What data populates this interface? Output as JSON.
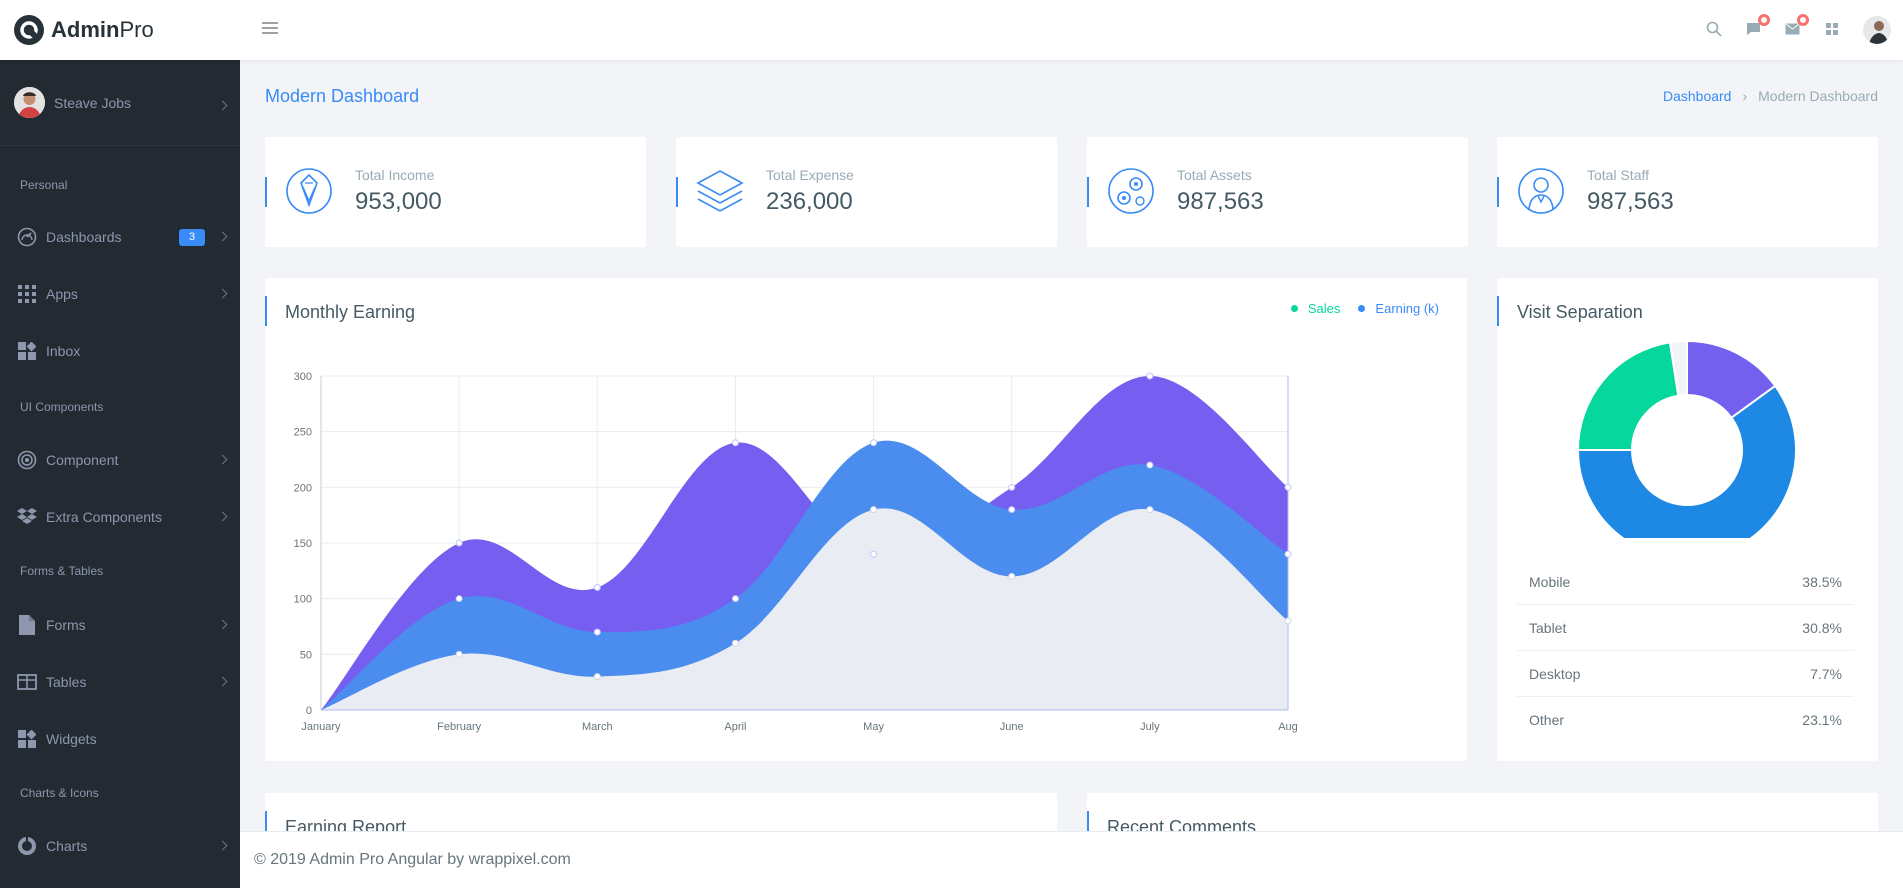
{
  "brand": {
    "bold": "Admin",
    "light": "Pro"
  },
  "user": {
    "name": "Steave Jobs"
  },
  "sidebar": {
    "captions": [
      "Personal",
      "UI Components",
      "Forms & Tables",
      "Charts & Icons"
    ],
    "items": [
      {
        "label": "Dashboards",
        "icon": "gauge-icon",
        "badge": "3"
      },
      {
        "label": "Apps",
        "icon": "grid-icon"
      },
      {
        "label": "Inbox",
        "icon": "widget-icon"
      },
      {
        "label": "Component",
        "icon": "target-icon"
      },
      {
        "label": "Extra Components",
        "icon": "dropbox-icon"
      },
      {
        "label": "Forms",
        "icon": "file-icon"
      },
      {
        "label": "Tables",
        "icon": "table-icon"
      },
      {
        "label": "Widgets",
        "icon": "widget-icon"
      },
      {
        "label": "Charts",
        "icon": "pie-icon"
      }
    ]
  },
  "header": {
    "title": "Modern Dashboard",
    "breadcrumb": [
      "Dashboard",
      "Modern Dashboard"
    ]
  },
  "stats": [
    {
      "label": "Total Income",
      "value": "953,000",
      "icon": "wallet-icon"
    },
    {
      "label": "Total Expense",
      "value": "236,000",
      "icon": "layers-icon"
    },
    {
      "label": "Total Assets",
      "value": "987,563",
      "icon": "gears-icon"
    },
    {
      "label": "Total Staff",
      "value": "987,563",
      "icon": "staff-icon"
    }
  ],
  "monthly": {
    "title": "Monthly Earning"
  },
  "visit": {
    "title": "Visit Separation",
    "rows": [
      {
        "label": "Mobile",
        "value": "38.5%"
      },
      {
        "label": "Tablet",
        "value": "30.8%"
      },
      {
        "label": "Desktop",
        "value": "7.7%"
      },
      {
        "label": "Other",
        "value": "23.1%"
      }
    ]
  },
  "bottom": {
    "left_title": "Earning Report",
    "right_title": "Recent Comments"
  },
  "footer": {
    "text": "© 2019 Admin Pro Angular by wrappixel.com"
  },
  "colors": {
    "primary": "#398bf7",
    "sales": "#06d79c",
    "earning": "#398bf7",
    "purple": "#745af2",
    "blue": "#1e88e5",
    "sidebar": "#232a32"
  },
  "chart_data": [
    {
      "type": "area",
      "x": [
        "January",
        "February",
        "March",
        "April",
        "May",
        "June",
        "July",
        "Aug"
      ],
      "ylim": [
        0,
        300
      ],
      "yticks": [
        0,
        50,
        100,
        150,
        200,
        250,
        300
      ],
      "legend": [
        "Sales",
        "Earning (k)"
      ],
      "series": [
        {
          "values": [
            0,
            50,
            30,
            60,
            180,
            120,
            180,
            80
          ],
          "color": "#e9ecf2"
        },
        {
          "values": [
            0,
            100,
            70,
            100,
            240,
            180,
            220,
            140
          ],
          "color": "#4a8def"
        },
        {
          "values": [
            0,
            150,
            110,
            240,
            140,
            200,
            300,
            200
          ],
          "color": "#765ef0"
        }
      ]
    },
    {
      "type": "pie",
      "donut": true,
      "segments": [
        {
          "value": 15,
          "color": "#7460ee"
        },
        {
          "value": 60,
          "color": "#1e88e5"
        },
        {
          "value": 22.5,
          "color": "#06d79c"
        },
        {
          "value": 2.5,
          "color": "#f2f4f8"
        }
      ]
    }
  ]
}
